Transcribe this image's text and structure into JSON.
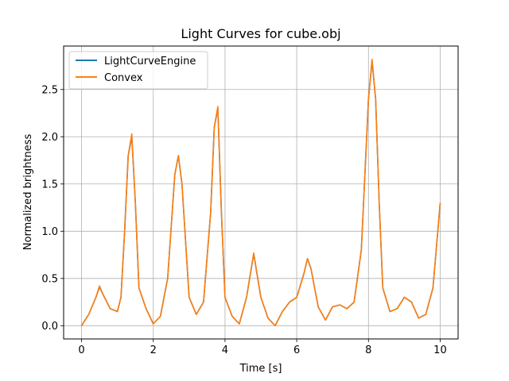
{
  "chart_data": {
    "type": "line",
    "title": "Light Curves for cube.obj",
    "xlabel": "Time [s]",
    "ylabel": "Normalized brightness",
    "xlim": [
      -0.5,
      10.5
    ],
    "ylim": [
      -0.14,
      2.96
    ],
    "xticks": [
      0,
      2,
      4,
      6,
      8,
      10
    ],
    "xtick_labels": [
      "0",
      "2",
      "4",
      "6",
      "8",
      "10"
    ],
    "yticks": [
      0.0,
      0.5,
      1.0,
      1.5,
      2.0,
      2.5
    ],
    "ytick_labels": [
      "0.0",
      "0.5",
      "1.0",
      "1.5",
      "2.0",
      "2.5"
    ],
    "grid": true,
    "legend_position": "top-left",
    "series": [
      {
        "name": "LightCurveEngine",
        "color": "#1f77b4",
        "x": [
          0.0,
          0.2,
          0.4,
          0.5,
          0.6,
          0.8,
          1.0,
          1.1,
          1.2,
          1.3,
          1.4,
          1.5,
          1.6,
          1.8,
          2.0,
          2.2,
          2.4,
          2.6,
          2.7,
          2.8,
          3.0,
          3.2,
          3.4,
          3.6,
          3.7,
          3.8,
          3.9,
          4.0,
          4.2,
          4.4,
          4.6,
          4.8,
          5.0,
          5.2,
          5.4,
          5.6,
          5.8,
          6.0,
          6.2,
          6.3,
          6.4,
          6.6,
          6.8,
          7.0,
          7.2,
          7.4,
          7.6,
          7.8,
          8.0,
          8.1,
          8.2,
          8.3,
          8.4,
          8.6,
          8.8,
          9.0,
          9.2,
          9.4,
          9.6,
          9.8,
          10.0
        ],
        "y": [
          0.0,
          0.12,
          0.3,
          0.41,
          0.33,
          0.18,
          0.15,
          0.3,
          1.0,
          1.8,
          2.0,
          1.3,
          0.4,
          0.18,
          0.02,
          0.1,
          0.5,
          1.6,
          1.8,
          1.5,
          0.3,
          0.12,
          0.25,
          1.2,
          2.1,
          2.3,
          1.2,
          0.3,
          0.1,
          0.02,
          0.3,
          0.76,
          0.3,
          0.08,
          0.0,
          0.15,
          0.25,
          0.3,
          0.55,
          0.71,
          0.6,
          0.2,
          0.06,
          0.2,
          0.22,
          0.18,
          0.25,
          0.8,
          2.4,
          2.8,
          2.4,
          1.3,
          0.4,
          0.15,
          0.18,
          0.3,
          0.25,
          0.08,
          0.12,
          0.4,
          1.3
        ]
      },
      {
        "name": "Convex",
        "color": "#ff7f0e",
        "x": [
          0.0,
          0.2,
          0.4,
          0.5,
          0.6,
          0.8,
          1.0,
          1.1,
          1.2,
          1.3,
          1.4,
          1.5,
          1.6,
          1.8,
          2.0,
          2.2,
          2.4,
          2.6,
          2.7,
          2.8,
          3.0,
          3.2,
          3.4,
          3.6,
          3.7,
          3.8,
          3.9,
          4.0,
          4.2,
          4.4,
          4.6,
          4.8,
          5.0,
          5.2,
          5.4,
          5.6,
          5.8,
          6.0,
          6.2,
          6.3,
          6.4,
          6.6,
          6.8,
          7.0,
          7.2,
          7.4,
          7.6,
          7.8,
          8.0,
          8.1,
          8.2,
          8.3,
          8.4,
          8.6,
          8.8,
          9.0,
          9.2,
          9.4,
          9.6,
          9.8,
          10.0
        ],
        "y": [
          0.0,
          0.12,
          0.3,
          0.42,
          0.33,
          0.18,
          0.15,
          0.3,
          1.0,
          1.8,
          2.03,
          1.3,
          0.4,
          0.18,
          0.02,
          0.1,
          0.5,
          1.6,
          1.8,
          1.5,
          0.3,
          0.12,
          0.25,
          1.2,
          2.1,
          2.32,
          1.2,
          0.3,
          0.1,
          0.02,
          0.3,
          0.77,
          0.3,
          0.08,
          0.0,
          0.15,
          0.25,
          0.3,
          0.55,
          0.71,
          0.6,
          0.2,
          0.06,
          0.2,
          0.22,
          0.18,
          0.25,
          0.8,
          2.4,
          2.82,
          2.4,
          1.3,
          0.4,
          0.15,
          0.18,
          0.3,
          0.25,
          0.08,
          0.12,
          0.4,
          1.3
        ]
      }
    ]
  }
}
